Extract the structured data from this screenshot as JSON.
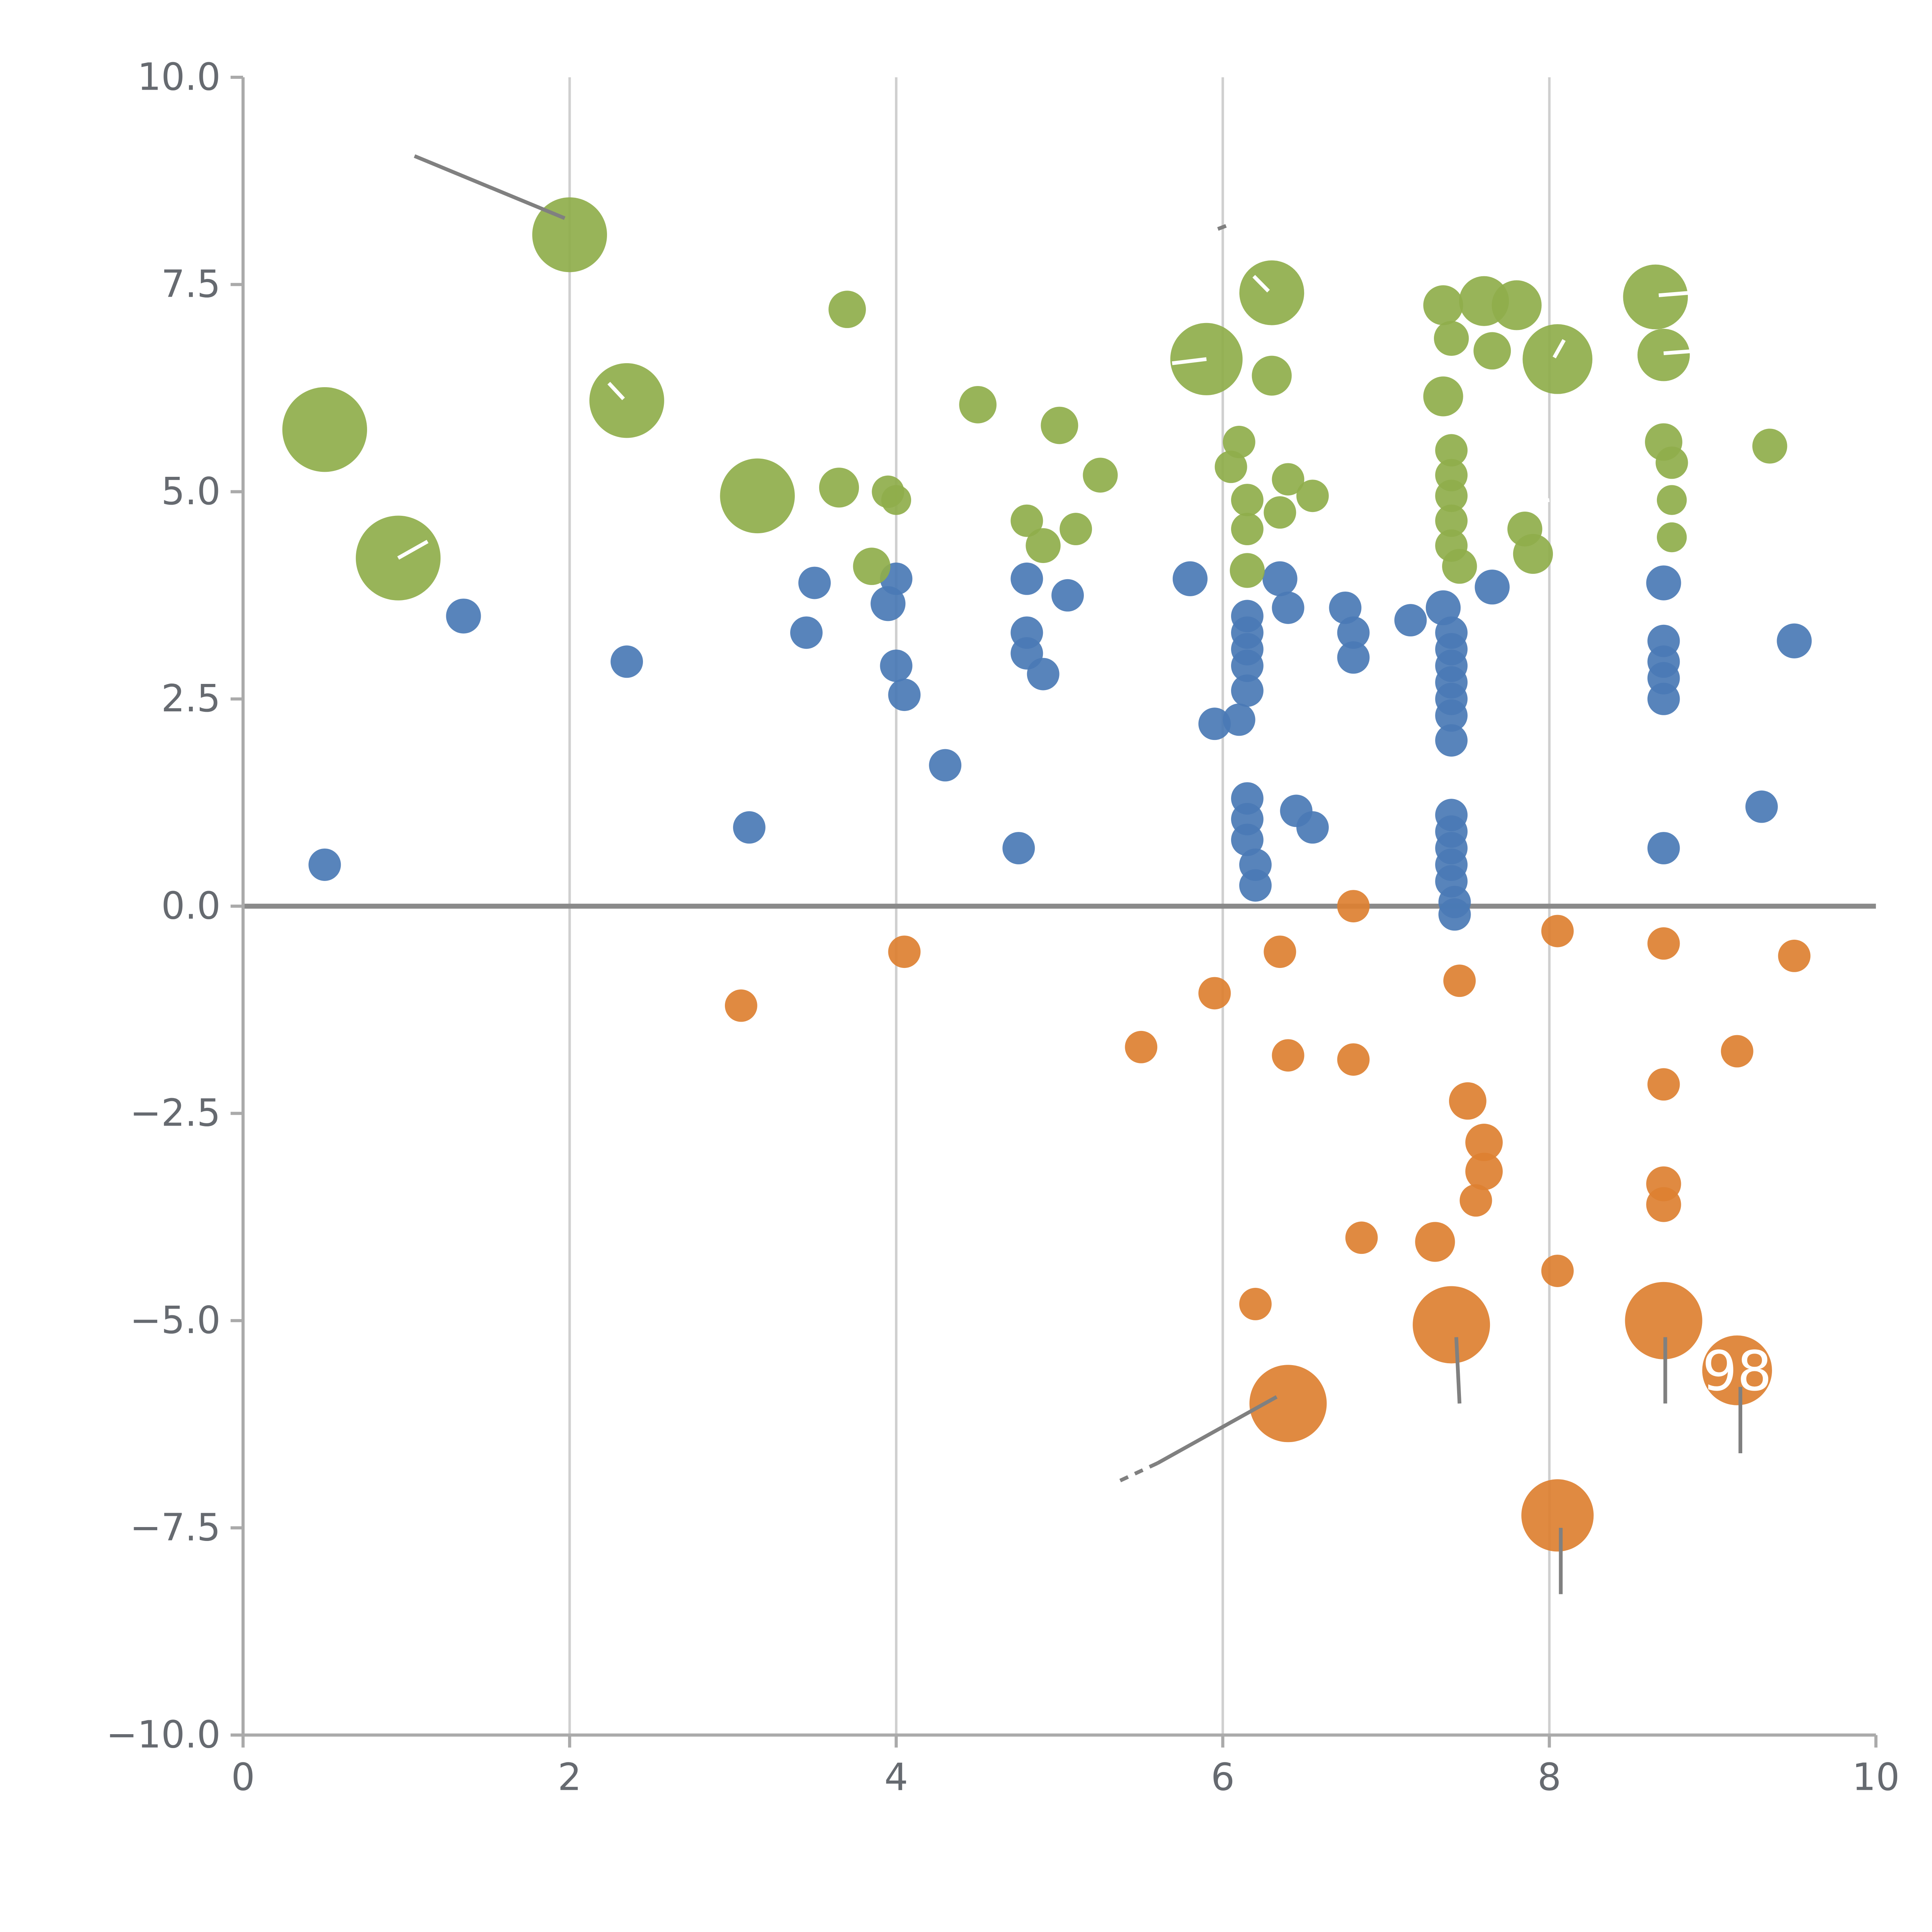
{
  "chart_data": {
    "type": "scatter",
    "title": "",
    "xlabel": "",
    "ylabel": "",
    "xlim": [
      0,
      10
    ],
    "ylim": [
      -10,
      10
    ],
    "x_ticks": [
      0,
      2,
      4,
      6,
      8,
      10
    ],
    "x_tick_labels": [
      "0",
      "2",
      "4",
      "6",
      "8",
      "10"
    ],
    "y_ticks": [
      10.0,
      7.5,
      5.0,
      2.5,
      0.0,
      -2.5,
      -5.0,
      -7.5,
      -10.0
    ],
    "y_tick_labels": [
      "10.0",
      "7.5",
      "5.0",
      "2.5",
      "0.0",
      "−2.5",
      "−5.0",
      "−7.5",
      "−10.0"
    ],
    "grid": "vertical gridlines at x = 2, 4, 6, 8; bold horizontal line at y = 0",
    "legend_position": "none",
    "colors": {
      "green": "#8fae4b",
      "blue": "#4a7ab5",
      "orange": "#dd8031",
      "gridline": "#cfcfcf",
      "zero_line": "#8a8a8a",
      "spine": "#aaaaaa",
      "annotation_line": "#808080",
      "tick_text": "#666a70",
      "label_text": "#ffffff"
    },
    "series": [
      {
        "name": "green",
        "color": "#8fae4b",
        "points": [
          [
            0.5,
            5.75,
            34
          ],
          [
            0.95,
            4.2,
            34
          ],
          [
            2.0,
            8.1,
            30
          ],
          [
            2.35,
            6.1,
            30
          ],
          [
            3.15,
            4.95,
            30
          ],
          [
            3.7,
            7.2,
            15
          ],
          [
            3.65,
            5.05,
            16
          ],
          [
            3.95,
            5.0,
            13
          ],
          [
            3.85,
            4.1,
            15
          ],
          [
            4.0,
            4.9,
            12
          ],
          [
            4.5,
            6.05,
            15
          ],
          [
            4.8,
            4.65,
            13
          ],
          [
            4.9,
            4.35,
            14
          ],
          [
            5.0,
            5.8,
            15
          ],
          [
            5.1,
            4.55,
            13
          ],
          [
            5.25,
            5.2,
            14
          ],
          [
            5.9,
            6.6,
            29
          ],
          [
            6.05,
            5.3,
            13
          ],
          [
            6.1,
            5.6,
            13
          ],
          [
            6.15,
            4.9,
            13
          ],
          [
            6.15,
            4.55,
            13
          ],
          [
            6.3,
            7.4,
            26
          ],
          [
            6.3,
            6.4,
            16
          ],
          [
            6.4,
            5.15,
            13
          ],
          [
            6.35,
            4.75,
            13
          ],
          [
            6.55,
            4.95,
            13
          ],
          [
            6.15,
            4.05,
            14
          ],
          [
            7.35,
            7.25,
            16
          ],
          [
            7.4,
            6.85,
            14
          ],
          [
            7.35,
            6.15,
            16
          ],
          [
            7.4,
            5.5,
            13
          ],
          [
            7.4,
            5.2,
            13
          ],
          [
            7.4,
            4.95,
            13
          ],
          [
            7.4,
            4.65,
            13
          ],
          [
            7.4,
            4.35,
            13
          ],
          [
            7.45,
            4.1,
            14
          ],
          [
            7.6,
            7.3,
            20
          ],
          [
            7.8,
            7.25,
            20
          ],
          [
            7.65,
            6.7,
            15
          ],
          [
            7.85,
            4.55,
            14
          ],
          [
            7.9,
            4.25,
            16
          ],
          [
            8.05,
            6.6,
            28
          ],
          [
            8.65,
            7.35,
            26
          ],
          [
            8.7,
            6.65,
            21
          ],
          [
            8.7,
            5.6,
            15
          ],
          [
            8.75,
            5.35,
            13
          ],
          [
            8.75,
            4.9,
            12
          ],
          [
            8.75,
            4.45,
            12
          ],
          [
            9.35,
            5.55,
            14
          ]
        ]
      },
      {
        "name": "blue",
        "color": "#4a7ab5",
        "points": [
          [
            0.5,
            0.5,
            13
          ],
          [
            1.35,
            3.5,
            14
          ],
          [
            2.35,
            2.95,
            13
          ],
          [
            3.1,
            0.95,
            13
          ],
          [
            3.45,
            3.3,
            13
          ],
          [
            3.5,
            3.9,
            13
          ],
          [
            3.95,
            3.65,
            14
          ],
          [
            4.0,
            3.95,
            13
          ],
          [
            4.0,
            2.9,
            13
          ],
          [
            4.05,
            2.55,
            13
          ],
          [
            4.3,
            1.7,
            13
          ],
          [
            4.75,
            0.7,
            13
          ],
          [
            4.8,
            3.95,
            13
          ],
          [
            4.8,
            3.3,
            13
          ],
          [
            4.8,
            3.05,
            13
          ],
          [
            4.9,
            2.8,
            13
          ],
          [
            5.05,
            3.75,
            13
          ],
          [
            5.8,
            3.95,
            14
          ],
          [
            5.95,
            2.2,
            13
          ],
          [
            6.1,
            2.25,
            13
          ],
          [
            6.15,
            3.5,
            13
          ],
          [
            6.15,
            3.3,
            13
          ],
          [
            6.15,
            3.1,
            13
          ],
          [
            6.15,
            2.9,
            13
          ],
          [
            6.15,
            2.6,
            13
          ],
          [
            6.15,
            1.3,
            13
          ],
          [
            6.15,
            1.05,
            13
          ],
          [
            6.15,
            0.8,
            13
          ],
          [
            6.2,
            0.5,
            13
          ],
          [
            6.2,
            0.25,
            13
          ],
          [
            6.35,
            3.95,
            14
          ],
          [
            6.4,
            3.6,
            13
          ],
          [
            6.45,
            1.15,
            13
          ],
          [
            6.55,
            0.95,
            13
          ],
          [
            6.75,
            3.6,
            13
          ],
          [
            6.8,
            3.3,
            13
          ],
          [
            6.8,
            3.0,
            13
          ],
          [
            7.15,
            3.45,
            13
          ],
          [
            7.35,
            3.6,
            14
          ],
          [
            7.4,
            3.3,
            13
          ],
          [
            7.4,
            3.1,
            13
          ],
          [
            7.4,
            2.9,
            13
          ],
          [
            7.4,
            2.7,
            13
          ],
          [
            7.4,
            2.5,
            13
          ],
          [
            7.4,
            2.3,
            13
          ],
          [
            7.4,
            2.0,
            13
          ],
          [
            7.4,
            1.1,
            13
          ],
          [
            7.4,
            0.9,
            13
          ],
          [
            7.4,
            0.7,
            13
          ],
          [
            7.4,
            0.5,
            13
          ],
          [
            7.4,
            0.3,
            13
          ],
          [
            7.42,
            0.05,
            13
          ],
          [
            7.42,
            -0.1,
            13
          ],
          [
            7.65,
            3.85,
            14
          ],
          [
            8.7,
            3.9,
            14
          ],
          [
            8.7,
            3.2,
            13
          ],
          [
            8.7,
            2.95,
            13
          ],
          [
            8.7,
            2.75,
            13
          ],
          [
            8.7,
            2.5,
            13
          ],
          [
            8.7,
            0.7,
            13
          ],
          [
            9.3,
            1.2,
            13
          ],
          [
            9.5,
            3.2,
            14
          ]
        ]
      },
      {
        "name": "orange",
        "color": "#dd8031",
        "points": [
          [
            3.05,
            -1.2,
            13
          ],
          [
            4.05,
            -0.55,
            13
          ],
          [
            5.5,
            -1.7,
            13
          ],
          [
            5.95,
            -1.05,
            13
          ],
          [
            6.35,
            -0.55,
            13
          ],
          [
            6.4,
            -1.8,
            13
          ],
          [
            6.2,
            -4.8,
            13
          ],
          [
            6.4,
            -6.0,
            31
          ],
          [
            6.8,
            0.0,
            13
          ],
          [
            6.8,
            -1.85,
            13
          ],
          [
            6.85,
            -4.0,
            13
          ],
          [
            7.3,
            -4.05,
            16
          ],
          [
            7.4,
            -5.05,
            31
          ],
          [
            7.45,
            -0.9,
            13
          ],
          [
            7.5,
            -2.35,
            15
          ],
          [
            7.6,
            -2.85,
            15
          ],
          [
            7.6,
            -3.2,
            15
          ],
          [
            7.55,
            -3.55,
            13
          ],
          [
            8.05,
            -0.3,
            13
          ],
          [
            8.05,
            -4.4,
            13
          ],
          [
            8.05,
            -7.35,
            29
          ],
          [
            8.7,
            -0.45,
            13
          ],
          [
            8.7,
            -2.15,
            13
          ],
          [
            8.7,
            -3.35,
            14
          ],
          [
            8.7,
            -3.6,
            14
          ],
          [
            8.7,
            -5.0,
            31
          ],
          [
            9.15,
            -5.6,
            28
          ],
          [
            9.15,
            -1.75,
            13
          ],
          [
            9.5,
            -0.6,
            13
          ]
        ]
      }
    ],
    "point_labels": [
      {
        "text": "98",
        "x": 9.15,
        "y": -5.6,
        "color": "#ffffff",
        "size": 44
      }
    ],
    "annotations": {
      "leader_lines": [
        {
          "x1": 1.05,
          "y1": 9.05,
          "x2": 1.97,
          "y2": 8.3,
          "dash": false
        },
        {
          "x1": 6.33,
          "y1": -5.92,
          "x2": 5.6,
          "y2": -6.72,
          "dash": false
        },
        {
          "x1": 5.6,
          "y1": -6.72,
          "x2": 5.35,
          "y2": -6.95,
          "dash": true
        },
        {
          "x1": 5.97,
          "y1": 8.17,
          "x2": 6.05,
          "y2": 8.23,
          "dash": true
        }
      ],
      "drop_lines": [
        {
          "x1": 7.43,
          "y1": -5.2,
          "x2": 7.45,
          "y2": -6.0
        },
        {
          "x1": 8.07,
          "y1": -7.5,
          "x2": 8.07,
          "y2": -8.3
        },
        {
          "x1": 8.71,
          "y1": -5.2,
          "x2": 8.71,
          "y2": -6.0
        },
        {
          "x1": 9.17,
          "y1": -5.8,
          "x2": 9.17,
          "y2": -6.6
        }
      ],
      "white_ticks": [
        {
          "x1": 0.95,
          "y1": 4.2,
          "x2": 1.13,
          "y2": 4.4
        },
        {
          "x1": 2.33,
          "y1": 6.12,
          "x2": 2.24,
          "y2": 6.31
        },
        {
          "x1": 5.9,
          "y1": 6.6,
          "x2": 5.69,
          "y2": 6.55
        },
        {
          "x1": 6.28,
          "y1": 7.42,
          "x2": 6.19,
          "y2": 7.6
        },
        {
          "x1": 8.03,
          "y1": 6.62,
          "x2": 8.09,
          "y2": 6.83
        },
        {
          "x1": 8.67,
          "y1": 7.37,
          "x2": 8.86,
          "y2": 7.4
        },
        {
          "x1": 8.7,
          "y1": 6.67,
          "x2": 8.9,
          "y2": 6.7
        },
        {
          "x1": 7.93,
          "y1": 4.88,
          "x2": 8.0,
          "y2": 4.9
        }
      ]
    }
  }
}
